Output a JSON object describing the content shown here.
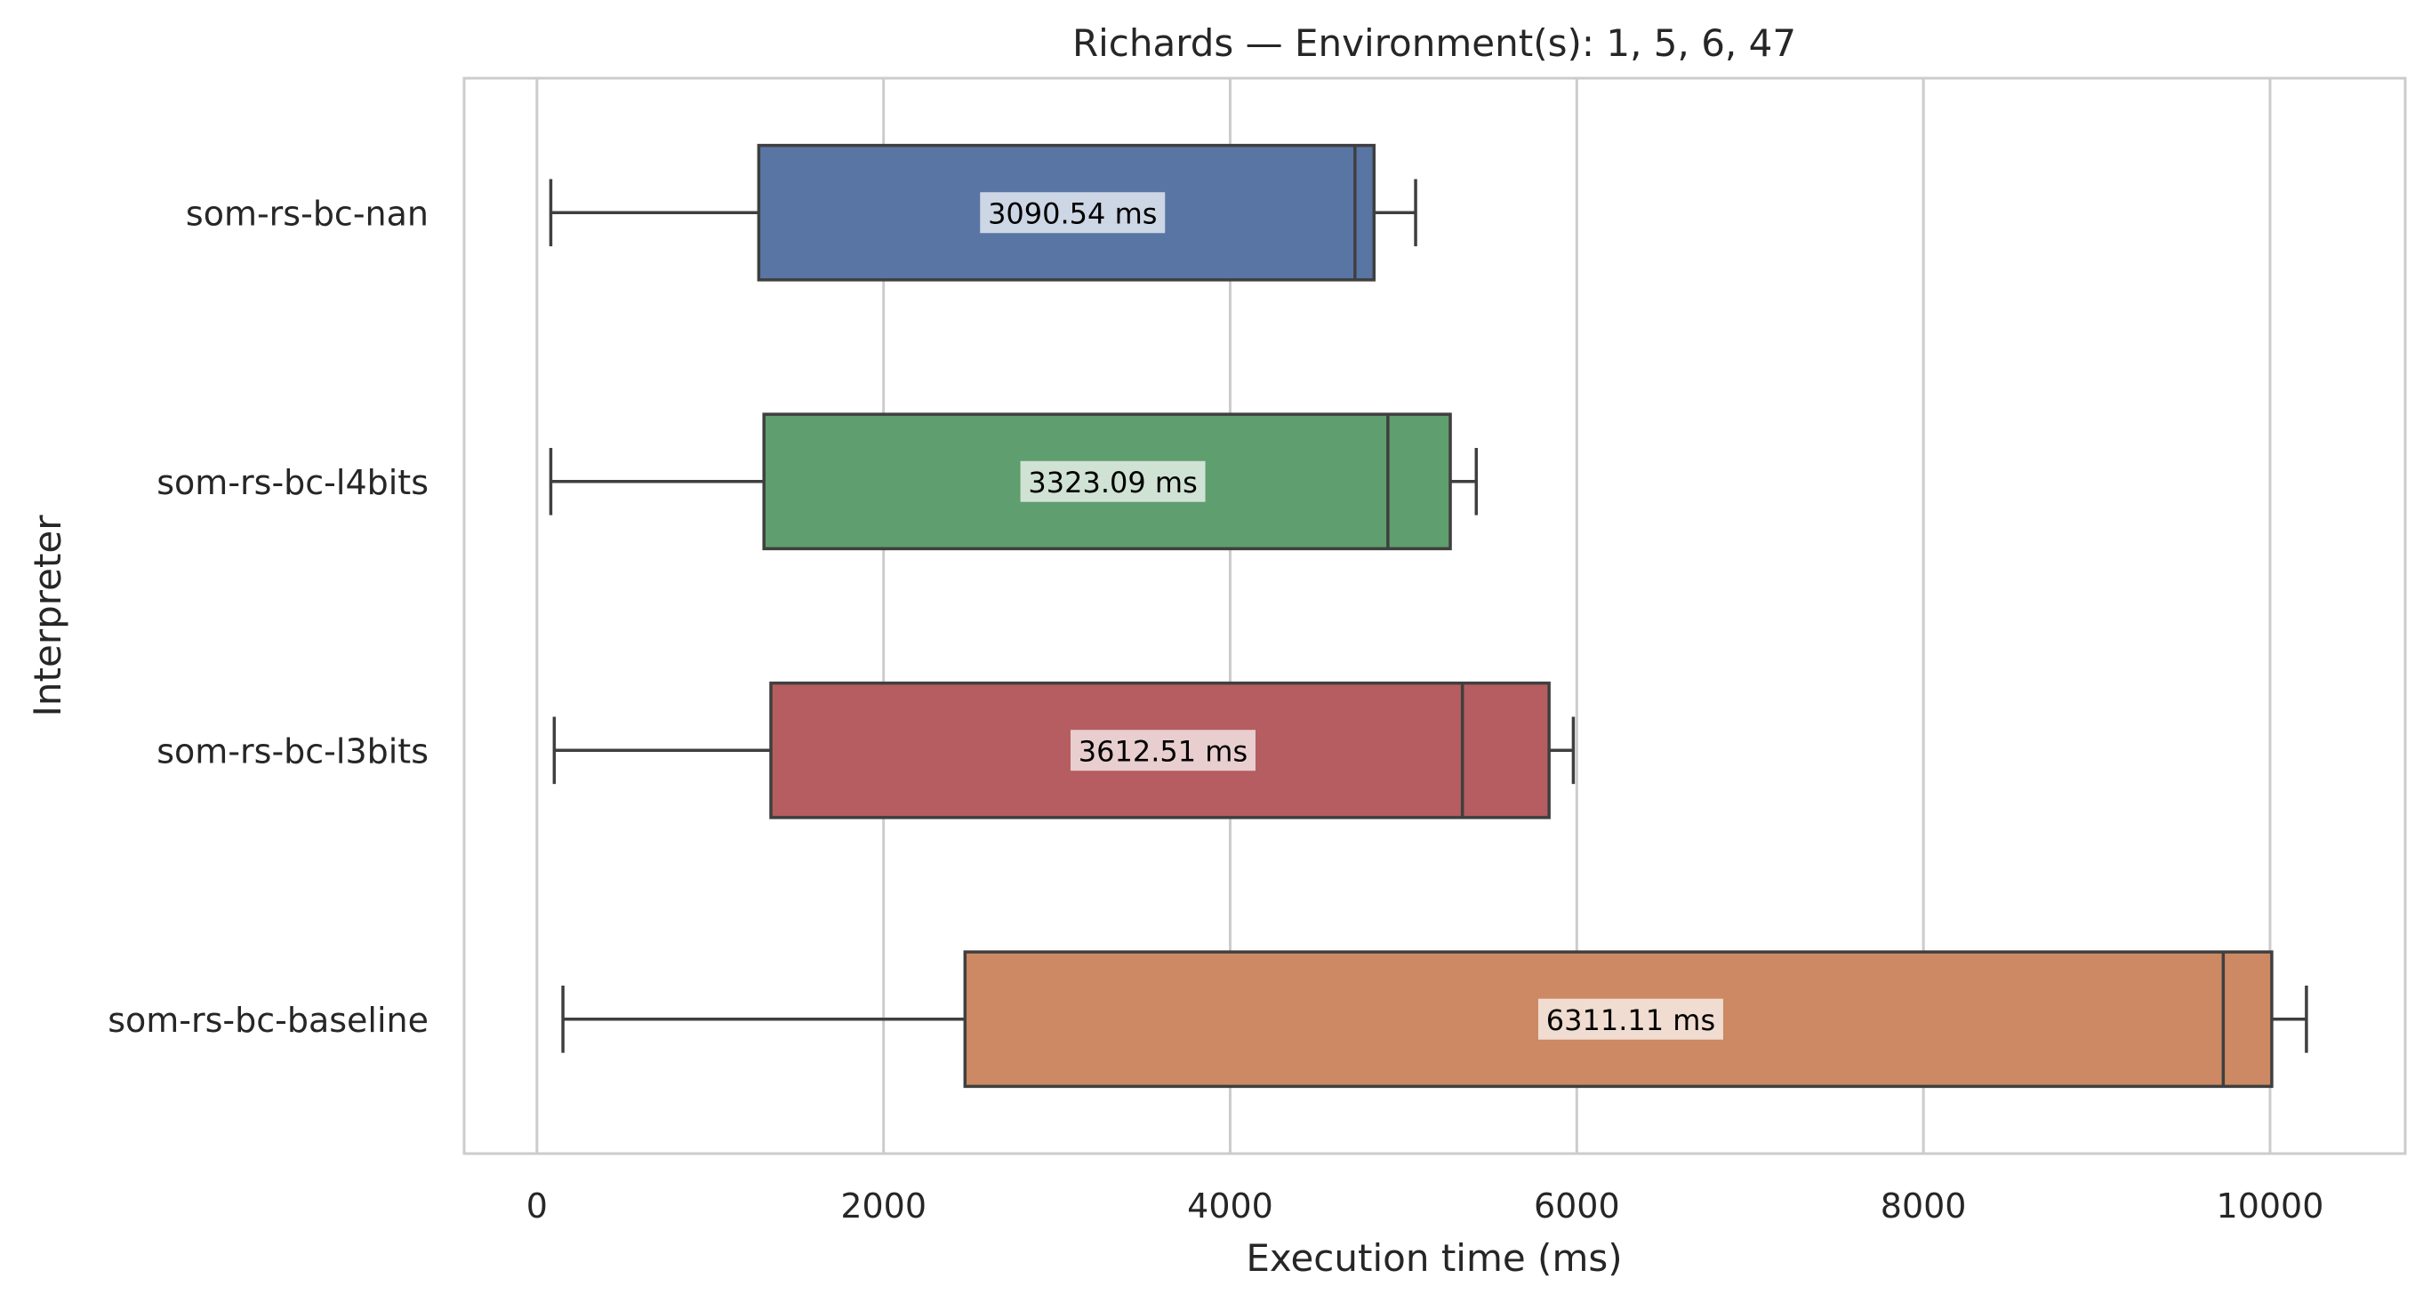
{
  "chart_data": {
    "type": "box",
    "orientation": "horizontal",
    "title": "Richards — Environment(s): 1, 5, 6, 47",
    "xlabel": "Execution time (ms)",
    "ylabel": "Interpreter",
    "xlim": [
      -420,
      10780
    ],
    "xticks": [
      0,
      2000,
      4000,
      6000,
      8000,
      10000
    ],
    "grid": "vertical",
    "series": [
      {
        "name": "som-rs-bc-nan",
        "color": "#5975a4",
        "whisker_low": 80,
        "q1": 1280,
        "median": 4720,
        "q3": 4830,
        "whisker_high": 5070,
        "mean_label": "3090.54 ms",
        "mean_value": 3090.54
      },
      {
        "name": "som-rs-bc-l4bits",
        "color": "#5f9e6e",
        "whisker_low": 80,
        "q1": 1310,
        "median": 4910,
        "q3": 5270,
        "whisker_high": 5420,
        "mean_label": "3323.09 ms",
        "mean_value": 3323.09
      },
      {
        "name": "som-rs-bc-l3bits",
        "color": "#b55d60",
        "whisker_low": 100,
        "q1": 1350,
        "median": 5340,
        "q3": 5840,
        "whisker_high": 5980,
        "mean_label": "3612.51 ms",
        "mean_value": 3612.51
      },
      {
        "name": "som-rs-bc-baseline",
        "color": "#cc8963",
        "whisker_low": 150,
        "q1": 2470,
        "median": 9730,
        "q3": 10010,
        "whisker_high": 10210,
        "mean_label": "6311.11 ms",
        "mean_value": 6311.11
      }
    ]
  }
}
